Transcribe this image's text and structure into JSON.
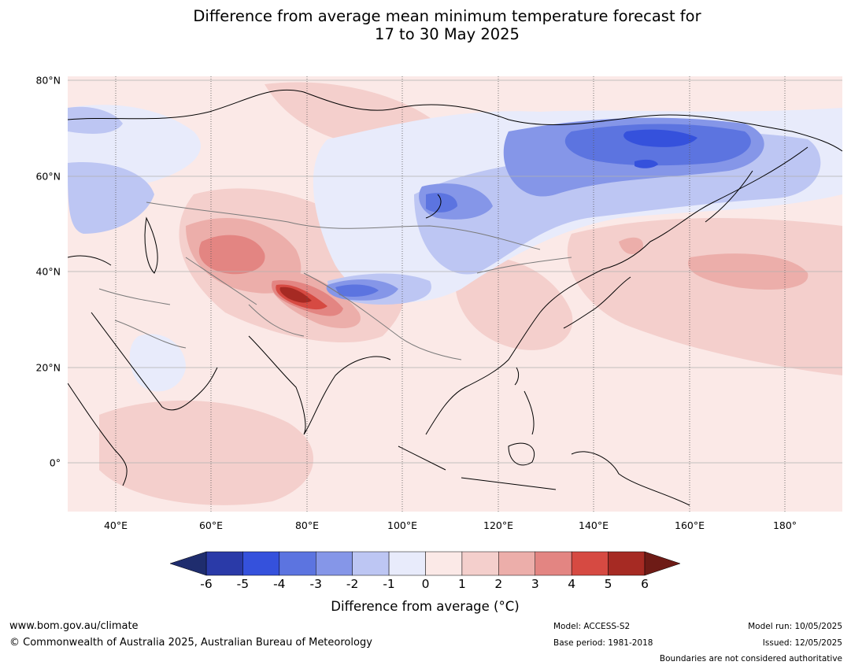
{
  "title": {
    "line1": "Difference from average mean minimum temperature forecast for",
    "line2": "17 to 30 May 2025"
  },
  "map": {
    "region": "Asia and Western Pacific",
    "lat_labels": [
      "80°N",
      "60°N",
      "40°N",
      "20°N",
      "0°"
    ],
    "lon_labels": [
      "40°E",
      "60°E",
      "80°E",
      "100°E",
      "120°E",
      "140°E",
      "160°E",
      "180°"
    ],
    "notable_features": {
      "warm_maximum": "Western Tibetan Plateau / Kashmir, +4 to +6 °C",
      "cold_minimum": "Northeastern Siberia, -3 to -5 °C"
    }
  },
  "colorbar": {
    "ticks": [
      "-6",
      "-5",
      "-4",
      "-3",
      "-2",
      "-1",
      "0",
      "1",
      "2",
      "3",
      "4",
      "5",
      "6"
    ],
    "label": "Difference from average (°C)",
    "colors": {
      "below_-6": "#1f2d6e",
      "-6_-5": "#2a3aa8",
      "-5_-4": "#3551dc",
      "-4_-3": "#5c74e0",
      "-3_-2": "#8596e8",
      "-2_-1": "#bdc6f3",
      "-1_0": "#e8ebfb",
      "0_1": "#fbe9e7",
      "1_2": "#f4cfcc",
      "2_3": "#ecaeaa",
      "3_4": "#e38582",
      "4_5": "#d64a42",
      "5_6": "#a62a23",
      "above_6": "#6e1b16"
    }
  },
  "footer": {
    "website": "www.bom.gov.au/climate",
    "copyright": "© Commonwealth of Australia 2025, Australian Bureau of Meteorology",
    "model": "Model: ACCESS-S2",
    "base_period": "Base period: 1981-2018",
    "model_run": "Model run: 10/05/2025",
    "issued": "Issued: 12/05/2025",
    "boundaries_note": "Boundaries are not considered authoritative"
  }
}
